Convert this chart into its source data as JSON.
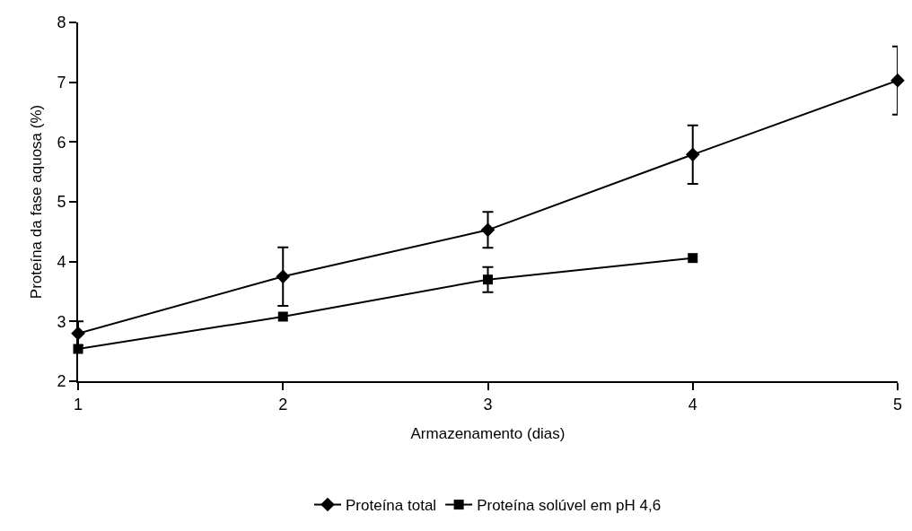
{
  "chart_data": {
    "type": "line",
    "xlabel": "Armazenamento (dias)",
    "ylabel": "Proteína da fase aquosa (%)",
    "x": [
      1,
      2,
      3,
      4,
      5
    ],
    "xlim": [
      1,
      5
    ],
    "xticks": [
      1,
      2,
      3,
      4,
      5
    ],
    "ylim": [
      2,
      8
    ],
    "yticks": [
      2,
      3,
      4,
      5,
      6,
      7,
      8
    ],
    "grid": false,
    "legend": "bottom",
    "line_style": "solid",
    "series": [
      {
        "name": "Proteína total",
        "color": "#000000",
        "marker": "diamond",
        "values": [
          2.8,
          3.75,
          4.53,
          5.79,
          7.03
        ],
        "errors": [
          0.2,
          0.49,
          0.3,
          0.49,
          0.57
        ]
      },
      {
        "name": "Proteína solúvel em pH 4,6",
        "color": "#000000",
        "marker": "square",
        "values": [
          2.54,
          3.08,
          3.7,
          4.06,
          null
        ],
        "errors": [
          null,
          null,
          0.21,
          null,
          null
        ]
      }
    ]
  }
}
